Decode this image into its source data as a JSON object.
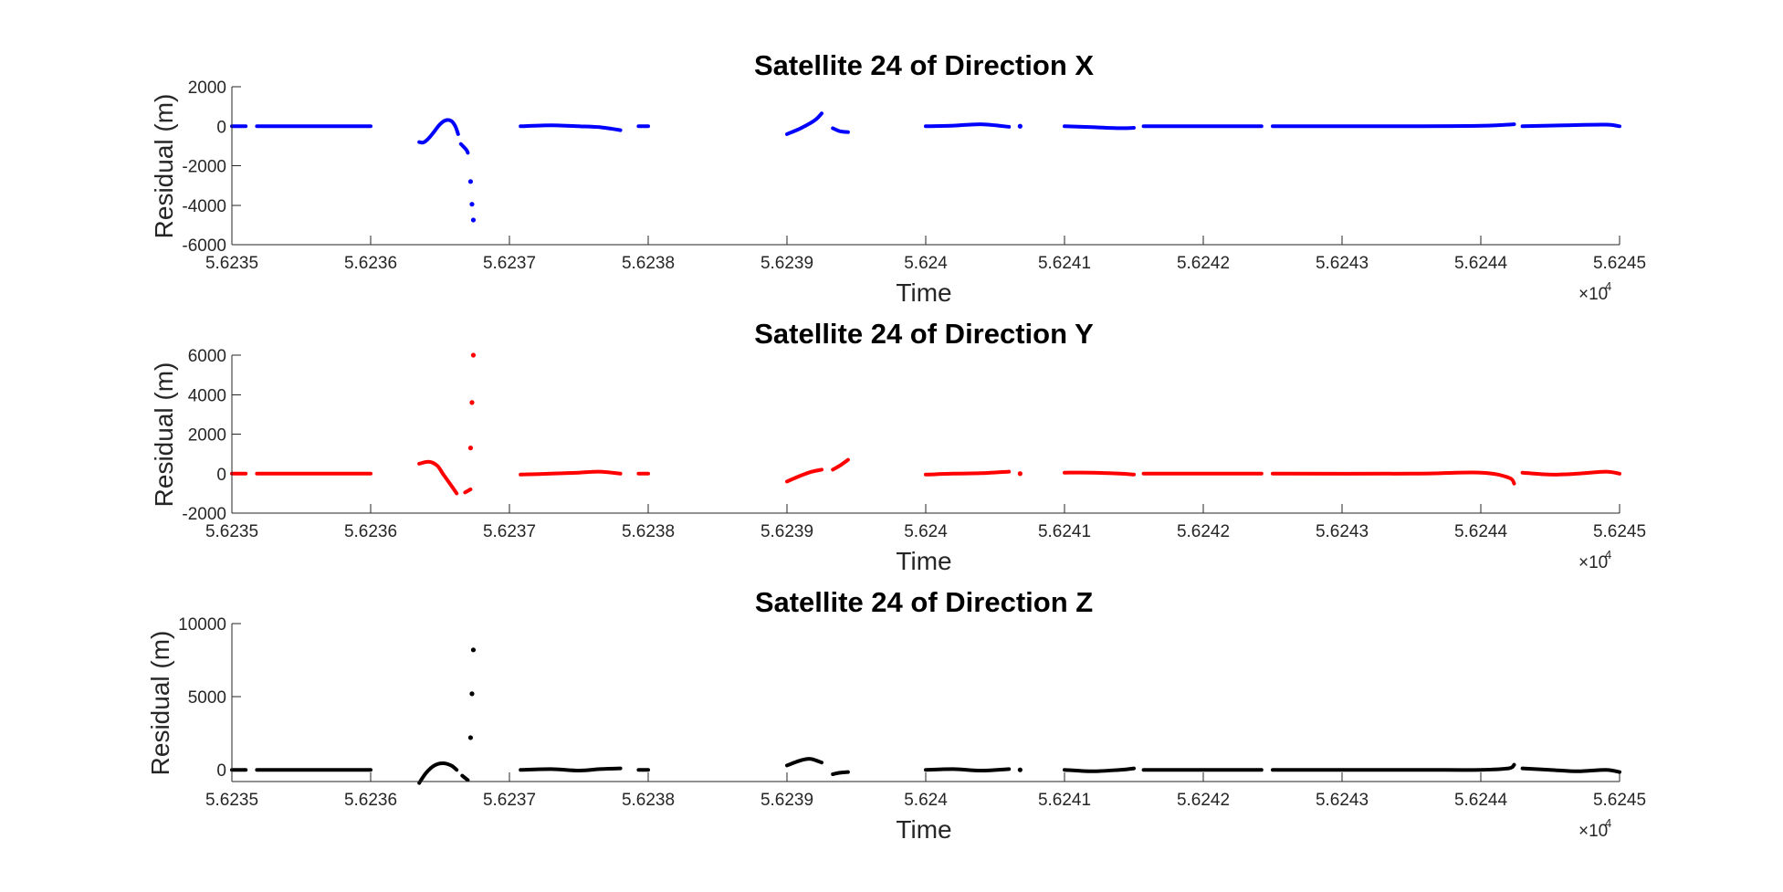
{
  "chart_data": [
    {
      "type": "scatter",
      "title": "Satellite 24 of Direction X",
      "xlabel": "Time",
      "ylabel": "Residual (m)",
      "xlim": [
        56235,
        56245
      ],
      "ylim": [
        -6000,
        2000
      ],
      "xticks": [
        "5.6235",
        "5.6236",
        "5.6237",
        "5.6238",
        "5.6239",
        "5.624",
        "5.6241",
        "5.6242",
        "5.6243",
        "5.6244",
        "5.6245"
      ],
      "yticks": [
        "2000",
        "0",
        "-2000",
        "-4000",
        "-6000"
      ],
      "xexponent": "×10",
      "xexponent_power": "4",
      "grid": false,
      "color": "#0000ff",
      "series": [
        {
          "values": [
            [
              56235.0,
              0
            ],
            [
              56235.1,
              0
            ]
          ]
        },
        {
          "values": [
            [
              56235.18,
              0
            ],
            [
              56236.0,
              0
            ]
          ]
        },
        {
          "values": [
            [
              56236.35,
              -800
            ],
            [
              56236.38,
              -820
            ],
            [
              56236.42,
              -600
            ],
            [
              56236.46,
              -250
            ],
            [
              56236.5,
              100
            ],
            [
              56236.54,
              300
            ],
            [
              56236.58,
              270
            ],
            [
              56236.61,
              0
            ],
            [
              56236.63,
              -400
            ]
          ]
        },
        {
          "values": [
            [
              56236.65,
              -900
            ],
            [
              56236.69,
              -1200
            ],
            [
              56236.7,
              -1350
            ]
          ]
        },
        {
          "values": [
            [
              56236.72,
              -2800
            ]
          ]
        },
        {
          "values": [
            [
              56236.73,
              -3950
            ]
          ]
        },
        {
          "values": [
            [
              56236.74,
              -4750
            ]
          ]
        },
        {
          "values": [
            [
              56237.08,
              0
            ],
            [
              56237.3,
              50
            ],
            [
              56237.5,
              0
            ],
            [
              56237.65,
              -50
            ],
            [
              56237.8,
              -200
            ]
          ]
        },
        {
          "values": [
            [
              56237.93,
              0
            ],
            [
              56238.0,
              0
            ]
          ]
        },
        {
          "values": [
            [
              56239.0,
              -400
            ],
            [
              56239.1,
              -100
            ],
            [
              56239.2,
              300
            ],
            [
              56239.25,
              650
            ]
          ]
        },
        {
          "values": [
            [
              56239.33,
              -100
            ],
            [
              56239.38,
              -250
            ],
            [
              56239.44,
              -300
            ]
          ]
        },
        {
          "values": [
            [
              56240.0,
              0
            ],
            [
              56240.2,
              30
            ],
            [
              56240.4,
              100
            ],
            [
              56240.6,
              -30
            ]
          ]
        },
        {
          "values": [
            [
              56240.68,
              0
            ]
          ]
        },
        {
          "values": [
            [
              56241.0,
              0
            ],
            [
              56241.2,
              -50
            ],
            [
              56241.4,
              -100
            ],
            [
              56241.5,
              -80
            ]
          ]
        },
        {
          "values": [
            [
              56241.57,
              0
            ],
            [
              56242.42,
              0
            ]
          ]
        },
        {
          "values": [
            [
              56242.5,
              0
            ],
            [
              56243.5,
              0
            ],
            [
              56244.0,
              20
            ],
            [
              56244.24,
              100
            ]
          ]
        },
        {
          "values": [
            [
              56244.3,
              0
            ],
            [
              56244.6,
              50
            ],
            [
              56244.9,
              80
            ],
            [
              56245.0,
              0
            ]
          ]
        }
      ]
    },
    {
      "type": "scatter",
      "title": "Satellite 24 of Direction Y",
      "xlabel": "Time",
      "ylabel": "Residual (m)",
      "xlim": [
        56235,
        56245
      ],
      "ylim": [
        -2000,
        6000
      ],
      "xticks": [
        "5.6235",
        "5.6236",
        "5.6237",
        "5.6238",
        "5.6239",
        "5.624",
        "5.6241",
        "5.6242",
        "5.6243",
        "5.6244",
        "5.6245"
      ],
      "yticks": [
        "6000",
        "4000",
        "2000",
        "0",
        "-2000"
      ],
      "xexponent": "×10",
      "xexponent_power": "4",
      "grid": false,
      "color": "#ff0000",
      "series": [
        {
          "values": [
            [
              56235.0,
              0
            ],
            [
              56235.1,
              0
            ]
          ]
        },
        {
          "values": [
            [
              56235.18,
              0
            ],
            [
              56236.0,
              0
            ]
          ]
        },
        {
          "values": [
            [
              56236.35,
              500
            ],
            [
              56236.42,
              600
            ],
            [
              56236.48,
              400
            ],
            [
              56236.52,
              0
            ],
            [
              56236.58,
              -600
            ],
            [
              56236.62,
              -1000
            ]
          ]
        },
        {
          "values": [
            [
              56236.68,
              -950
            ],
            [
              56236.72,
              -800
            ]
          ]
        },
        {
          "values": [
            [
              56236.72,
              1300
            ]
          ]
        },
        {
          "values": [
            [
              56236.73,
              3600
            ]
          ]
        },
        {
          "values": [
            [
              56236.74,
              6000
            ]
          ]
        },
        {
          "values": [
            [
              56237.08,
              -50
            ],
            [
              56237.3,
              0
            ],
            [
              56237.5,
              50
            ],
            [
              56237.65,
              100
            ],
            [
              56237.8,
              0
            ]
          ]
        },
        {
          "values": [
            [
              56237.93,
              0
            ],
            [
              56238.0,
              0
            ]
          ]
        },
        {
          "values": [
            [
              56239.0,
              -400
            ],
            [
              56239.1,
              -100
            ],
            [
              56239.18,
              100
            ],
            [
              56239.25,
              200
            ]
          ]
        },
        {
          "values": [
            [
              56239.33,
              200
            ],
            [
              56239.38,
              400
            ],
            [
              56239.44,
              700
            ]
          ]
        },
        {
          "values": [
            [
              56240.0,
              -50
            ],
            [
              56240.2,
              0
            ],
            [
              56240.4,
              20
            ],
            [
              56240.6,
              100
            ]
          ]
        },
        {
          "values": [
            [
              56240.68,
              0
            ]
          ]
        },
        {
          "values": [
            [
              56241.0,
              50
            ],
            [
              56241.2,
              50
            ],
            [
              56241.4,
              0
            ],
            [
              56241.5,
              -50
            ]
          ]
        },
        {
          "values": [
            [
              56241.57,
              0
            ],
            [
              56242.42,
              0
            ]
          ]
        },
        {
          "values": [
            [
              56242.5,
              0
            ],
            [
              56243.5,
              0
            ],
            [
              56244.0,
              50
            ],
            [
              56244.2,
              -200
            ],
            [
              56244.24,
              -500
            ]
          ]
        },
        {
          "values": [
            [
              56244.3,
              50
            ],
            [
              56244.5,
              -50
            ],
            [
              56244.7,
              0
            ],
            [
              56244.9,
              100
            ],
            [
              56245.0,
              0
            ]
          ]
        }
      ]
    },
    {
      "type": "scatter",
      "title": "Satellite 24 of Direction Z",
      "xlabel": "Time",
      "ylabel": "Residual (m)",
      "xlim": [
        56235,
        56245
      ],
      "ylim": [
        -800,
        10000
      ],
      "xticks": [
        "5.6235",
        "5.6236",
        "5.6237",
        "5.6238",
        "5.6239",
        "5.624",
        "5.6241",
        "5.6242",
        "5.6243",
        "5.6244",
        "5.6245"
      ],
      "yticks": [
        "10000",
        "5000",
        "0"
      ],
      "ytick_values": [
        10000,
        5000,
        0
      ],
      "xexponent": "×10",
      "xexponent_power": "4",
      "grid": false,
      "color": "#000000",
      "series": [
        {
          "values": [
            [
              56235.0,
              0
            ],
            [
              56235.1,
              0
            ]
          ]
        },
        {
          "values": [
            [
              56235.18,
              0
            ],
            [
              56236.0,
              0
            ]
          ]
        },
        {
          "values": [
            [
              56236.35,
              -900
            ],
            [
              56236.4,
              -200
            ],
            [
              56236.46,
              300
            ],
            [
              56236.52,
              450
            ],
            [
              56236.58,
              300
            ],
            [
              56236.62,
              0
            ]
          ]
        },
        {
          "values": [
            [
              56236.66,
              -400
            ],
            [
              56236.7,
              -700
            ]
          ]
        },
        {
          "values": [
            [
              56236.72,
              2200
            ]
          ]
        },
        {
          "values": [
            [
              56236.73,
              5200
            ]
          ]
        },
        {
          "values": [
            [
              56236.74,
              8200
            ]
          ]
        },
        {
          "values": [
            [
              56237.08,
              0
            ],
            [
              56237.3,
              50
            ],
            [
              56237.5,
              -50
            ],
            [
              56237.65,
              50
            ],
            [
              56237.8,
              100
            ]
          ]
        },
        {
          "values": [
            [
              56237.93,
              0
            ],
            [
              56238.0,
              0
            ]
          ]
        },
        {
          "values": [
            [
              56239.0,
              300
            ],
            [
              56239.1,
              650
            ],
            [
              56239.17,
              750
            ],
            [
              56239.25,
              500
            ]
          ]
        },
        {
          "values": [
            [
              56239.33,
              -300
            ],
            [
              56239.38,
              -200
            ],
            [
              56239.44,
              -150
            ]
          ]
        },
        {
          "values": [
            [
              56240.0,
              0
            ],
            [
              56240.2,
              50
            ],
            [
              56240.4,
              -50
            ],
            [
              56240.6,
              50
            ]
          ]
        },
        {
          "values": [
            [
              56240.68,
              0
            ]
          ]
        },
        {
          "values": [
            [
              56241.0,
              0
            ],
            [
              56241.2,
              -100
            ],
            [
              56241.4,
              0
            ],
            [
              56241.5,
              100
            ]
          ]
        },
        {
          "values": [
            [
              56241.57,
              0
            ],
            [
              56242.42,
              0
            ]
          ]
        },
        {
          "values": [
            [
              56242.5,
              0
            ],
            [
              56243.5,
              0
            ],
            [
              56244.0,
              0
            ],
            [
              56244.2,
              100
            ],
            [
              56244.24,
              350
            ]
          ]
        },
        {
          "values": [
            [
              56244.3,
              100
            ],
            [
              56244.5,
              0
            ],
            [
              56244.7,
              -100
            ],
            [
              56244.9,
              0
            ],
            [
              56245.0,
              -150
            ]
          ]
        }
      ]
    }
  ]
}
